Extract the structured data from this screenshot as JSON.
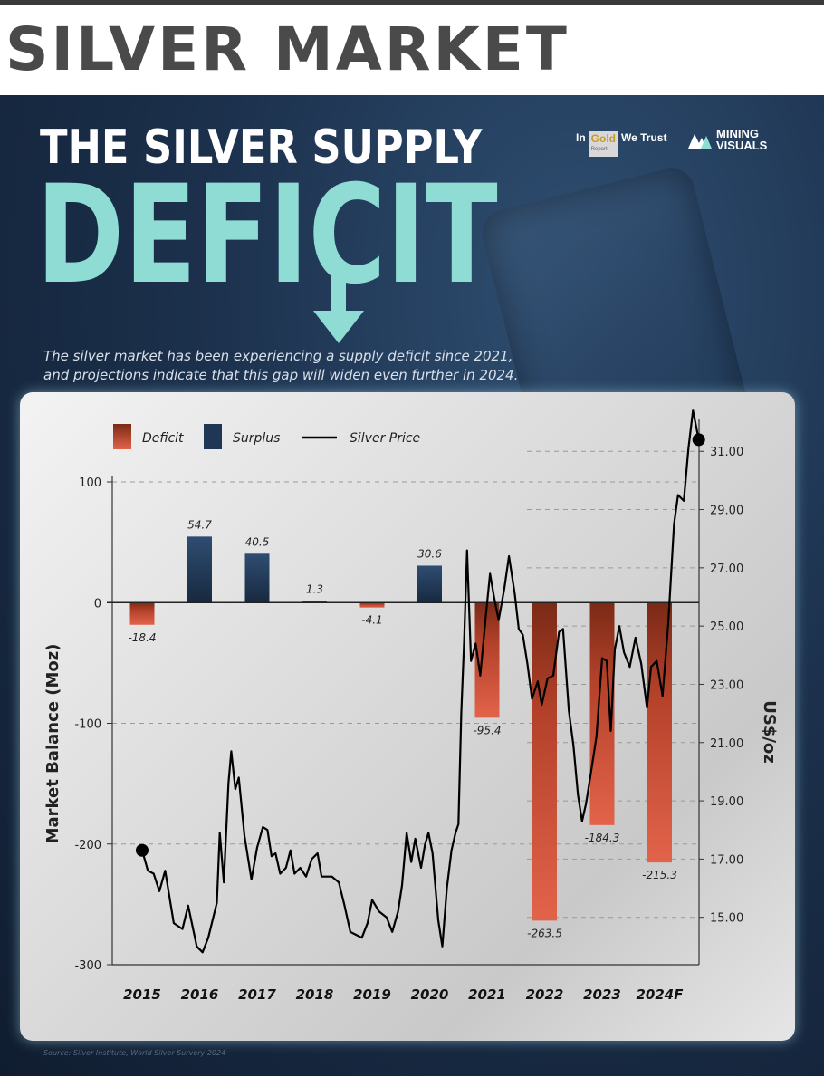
{
  "page_heading": "SILVER MARKET",
  "poster": {
    "title_line1": "THE SILVER SUPPLY",
    "title_line2": "DEFICIT",
    "subtitle_line1": "The silver market has been experiencing a supply deficit since 2021,",
    "subtitle_line2": "and projections indicate that this gap will widen even further in 2024.",
    "logo1": {
      "part1": "In",
      "part2": "Gold",
      "part2_sub": "Report",
      "part3": "We Trust"
    },
    "logo2": {
      "line1": "MINING",
      "line2": "VISUALS"
    },
    "source": "Source: Silver Institute, World Silver Survery 2024"
  },
  "colors": {
    "deficit": "#d9573c",
    "surplus": "#1f3654",
    "price_line": "#000000",
    "title_accent": "#8fdcd4",
    "background": "#1c314d"
  },
  "chart_data": {
    "type": "bar",
    "categories": [
      "2015",
      "2016",
      "2017",
      "2018",
      "2019",
      "2020",
      "2021",
      "2022",
      "2023",
      "2024F"
    ],
    "legend": [
      "Deficit",
      "Surplus",
      "Silver Price"
    ],
    "legend_position": "top",
    "ylabel": "Market Balance (Moz)",
    "ylabel_right": "US$/oz",
    "ylim": [
      -300,
      100
    ],
    "yticks": [
      100,
      0,
      -100,
      -200,
      -300
    ],
    "ylim_right": [
      13.0,
      32.5
    ],
    "yticks_right": [
      "31.00",
      "29.00",
      "27.00",
      "25.00",
      "23.00",
      "21.00",
      "19.00",
      "17.00",
      "15.00"
    ],
    "series": [
      {
        "name": "Market Balance",
        "type": "bar",
        "values": [
          -18.4,
          54.7,
          40.5,
          1.3,
          -4.1,
          30.6,
          -95.4,
          -263.5,
          -184.3,
          -215.3
        ],
        "labels": [
          "-18.4",
          "54.7",
          "40.5",
          "1.3",
          "-4.1",
          "30.6",
          "-95.4",
          "-263.5",
          "-184.3",
          "-215.3"
        ]
      },
      {
        "name": "Silver Price",
        "type": "line",
        "axis": "right",
        "points": [
          [
            2015.0,
            17.3
          ],
          [
            2015.1,
            16.6
          ],
          [
            2015.2,
            16.5
          ],
          [
            2015.3,
            15.9
          ],
          [
            2015.4,
            16.6
          ],
          [
            2015.55,
            14.8
          ],
          [
            2015.7,
            14.6
          ],
          [
            2015.8,
            15.4
          ],
          [
            2015.95,
            14.0
          ],
          [
            2016.05,
            13.8
          ],
          [
            2016.15,
            14.3
          ],
          [
            2016.3,
            15.5
          ],
          [
            2016.35,
            17.9
          ],
          [
            2016.42,
            16.2
          ],
          [
            2016.5,
            19.6
          ],
          [
            2016.55,
            20.7
          ],
          [
            2016.62,
            19.4
          ],
          [
            2016.68,
            19.8
          ],
          [
            2016.78,
            17.8
          ],
          [
            2016.9,
            16.3
          ],
          [
            2017.0,
            17.4
          ],
          [
            2017.1,
            18.1
          ],
          [
            2017.18,
            18.0
          ],
          [
            2017.25,
            17.1
          ],
          [
            2017.32,
            17.2
          ],
          [
            2017.4,
            16.5
          ],
          [
            2017.5,
            16.7
          ],
          [
            2017.58,
            17.3
          ],
          [
            2017.65,
            16.5
          ],
          [
            2017.75,
            16.7
          ],
          [
            2017.85,
            16.4
          ],
          [
            2017.95,
            17.0
          ],
          [
            2018.05,
            17.2
          ],
          [
            2018.12,
            16.4
          ],
          [
            2018.3,
            16.4
          ],
          [
            2018.42,
            16.2
          ],
          [
            2018.52,
            15.4
          ],
          [
            2018.62,
            14.5
          ],
          [
            2018.72,
            14.4
          ],
          [
            2018.82,
            14.3
          ],
          [
            2018.92,
            14.8
          ],
          [
            2019.0,
            15.6
          ],
          [
            2019.12,
            15.2
          ],
          [
            2019.25,
            15.0
          ],
          [
            2019.35,
            14.5
          ],
          [
            2019.45,
            15.2
          ],
          [
            2019.52,
            16.1
          ],
          [
            2019.6,
            17.9
          ],
          [
            2019.68,
            16.9
          ],
          [
            2019.75,
            17.7
          ],
          [
            2019.85,
            16.7
          ],
          [
            2019.92,
            17.5
          ],
          [
            2019.98,
            17.9
          ],
          [
            2020.05,
            17.2
          ],
          [
            2020.15,
            14.9
          ],
          [
            2020.22,
            14.0
          ],
          [
            2020.3,
            16.0
          ],
          [
            2020.38,
            17.3
          ],
          [
            2020.45,
            17.9
          ],
          [
            2020.5,
            18.2
          ],
          [
            2020.55,
            22.0
          ],
          [
            2020.6,
            24.5
          ],
          [
            2020.65,
            27.6
          ],
          [
            2020.72,
            23.8
          ],
          [
            2020.8,
            24.4
          ],
          [
            2020.88,
            23.3
          ],
          [
            2020.98,
            25.4
          ],
          [
            2021.05,
            26.8
          ],
          [
            2021.12,
            26.0
          ],
          [
            2021.2,
            25.2
          ],
          [
            2021.3,
            26.3
          ],
          [
            2021.38,
            27.4
          ],
          [
            2021.48,
            26.1
          ],
          [
            2021.55,
            24.9
          ],
          [
            2021.62,
            24.7
          ],
          [
            2021.7,
            23.7
          ],
          [
            2021.78,
            22.5
          ],
          [
            2021.88,
            23.1
          ],
          [
            2021.95,
            22.3
          ],
          [
            2022.05,
            23.2
          ],
          [
            2022.15,
            23.3
          ],
          [
            2022.25,
            24.8
          ],
          [
            2022.32,
            24.9
          ],
          [
            2022.42,
            22.1
          ],
          [
            2022.5,
            20.9
          ],
          [
            2022.58,
            19.2
          ],
          [
            2022.65,
            18.3
          ],
          [
            2022.72,
            18.9
          ],
          [
            2022.8,
            19.9
          ],
          [
            2022.9,
            21.2
          ],
          [
            2023.0,
            23.9
          ],
          [
            2023.08,
            23.8
          ],
          [
            2023.15,
            21.4
          ],
          [
            2023.22,
            24.2
          ],
          [
            2023.3,
            25.0
          ],
          [
            2023.38,
            24.1
          ],
          [
            2023.48,
            23.6
          ],
          [
            2023.58,
            24.6
          ],
          [
            2023.68,
            23.7
          ],
          [
            2023.78,
            22.2
          ],
          [
            2023.85,
            23.6
          ],
          [
            2023.95,
            23.8
          ],
          [
            2024.05,
            22.6
          ],
          [
            2024.15,
            25.1
          ],
          [
            2024.25,
            28.5
          ],
          [
            2024.32,
            29.5
          ],
          [
            2024.42,
            29.3
          ],
          [
            2024.5,
            31.1
          ],
          [
            2024.58,
            32.4
          ],
          [
            2024.68,
            31.4
          ]
        ]
      }
    ]
  }
}
